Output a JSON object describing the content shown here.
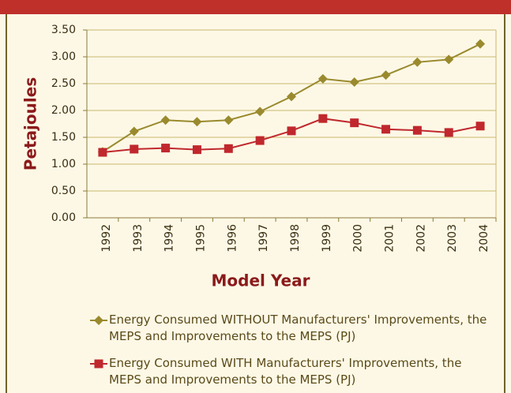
{
  "chart_data": {
    "type": "line",
    "x_label": "Model Year",
    "y_label": "Petajoules",
    "categories": [
      "1992",
      "1993",
      "1994",
      "1995",
      "1996",
      "1997",
      "1998",
      "1999",
      "2000",
      "2001",
      "2002",
      "2003",
      "2004"
    ],
    "series": [
      {
        "name": "Energy Consumed WITHOUT Manufacturers' Improvements, the MEPS and Improvements to the MEPS (PJ)",
        "color": "#9a8a2e",
        "marker": "diamond",
        "values": [
          1.23,
          1.61,
          1.82,
          1.79,
          1.82,
          1.98,
          2.26,
          2.59,
          2.53,
          2.66,
          2.9,
          2.95,
          3.24
        ]
      },
      {
        "name": "Energy Consumed WITH Manufacturers' Improvements, the MEPS and Improvements to the MEPS (PJ)",
        "color": "#c0282d",
        "marker": "square",
        "values": [
          1.22,
          1.28,
          1.3,
          1.27,
          1.29,
          1.44,
          1.62,
          1.85,
          1.77,
          1.65,
          1.63,
          1.59,
          1.71
        ]
      }
    ],
    "ylim": [
      0,
      3.5
    ],
    "yticks": [
      {
        "value": 0,
        "label": "0.00"
      },
      {
        "value": 0.5,
        "label": "0.50"
      },
      {
        "value": 1,
        "label": "1.00"
      },
      {
        "value": 1.5,
        "label": "1.50"
      },
      {
        "value": 2,
        "label": "2.00"
      },
      {
        "value": 2.5,
        "label": "2.50"
      },
      {
        "value": 3,
        "label": "3.00"
      },
      {
        "value": 3.5,
        "label": "3.50"
      }
    ],
    "grid": true,
    "legend": "bottom"
  }
}
